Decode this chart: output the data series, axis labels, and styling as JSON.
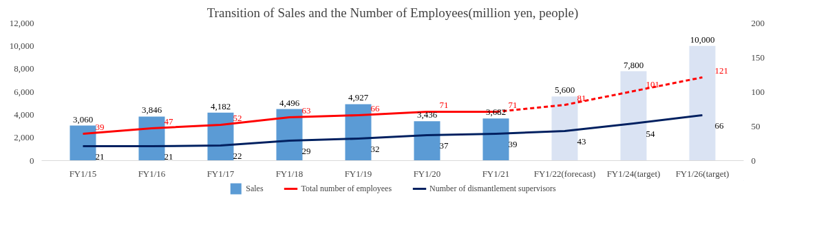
{
  "chart_data": {
    "type": "bar",
    "title": "Transition of Sales and the Number of Employees(million yen, people)",
    "categories": [
      "FY1/15",
      "FY1/16",
      "FY1/17",
      "FY1/18",
      "FY1/19",
      "FY1/20",
      "FY1/21",
      "FY1/22(forecast)",
      "FY1/24(target)",
      "FY1/26(target)"
    ],
    "series": [
      {
        "name": "Sales",
        "colors": [
          "#5b9bd5",
          "#5b9bd5",
          "#5b9bd5",
          "#5b9bd5",
          "#5b9bd5",
          "#5b9bd5",
          "#5b9bd5",
          "#dae3f3",
          "#dae3f3",
          "#dae3f3"
        ],
        "values": [
          3060,
          3846,
          4182,
          4496,
          4927,
          3436,
          3682,
          5600,
          7800,
          10000
        ],
        "value_labels": [
          "3,060",
          "3,846",
          "4,182",
          "4,496",
          "4,927",
          "3,436",
          "3,682",
          "5,600",
          "7,800",
          "10,000"
        ]
      },
      {
        "name": "Total number of employees",
        "type": "line",
        "axis": "y2",
        "color": "#ff0000",
        "line_style": "solid",
        "values": [
          39,
          47,
          52,
          63,
          66,
          71,
          71,
          null,
          null,
          null
        ]
      },
      {
        "type": "line",
        "axis": "y2",
        "color": "#ff0000",
        "line_style": "dashed",
        "values": [
          null,
          null,
          null,
          null,
          null,
          null,
          71,
          81,
          101,
          121
        ],
        "value_labels": [
          null,
          null,
          null,
          null,
          null,
          null,
          null,
          "81",
          "101",
          "121"
        ]
      },
      {
        "name": "Number of dismantlement supervisors",
        "type": "line",
        "axis": "y2",
        "color": "#002060",
        "line_style": "solid",
        "values": [
          21,
          21,
          22,
          29,
          32,
          37,
          39,
          43,
          54,
          66
        ]
      }
    ],
    "ylim": [
      0,
      12000
    ],
    "yticks": [
      0,
      {
        "value": 2000,
        "label": "2,000"
      },
      {
        "value": 4000,
        "label": "4,000"
      },
      {
        "value": 6000,
        "label": "6,000"
      },
      {
        "value": 8000,
        "label": "8,000"
      },
      {
        "value": 10000,
        "label": "10,000"
      },
      {
        "value": 12000,
        "label": "12,000"
      }
    ],
    "y2lim": [
      0,
      200
    ],
    "y2ticks": [
      0,
      50,
      100,
      150,
      200
    ],
    "data_labels": true,
    "legend": "bottom"
  }
}
